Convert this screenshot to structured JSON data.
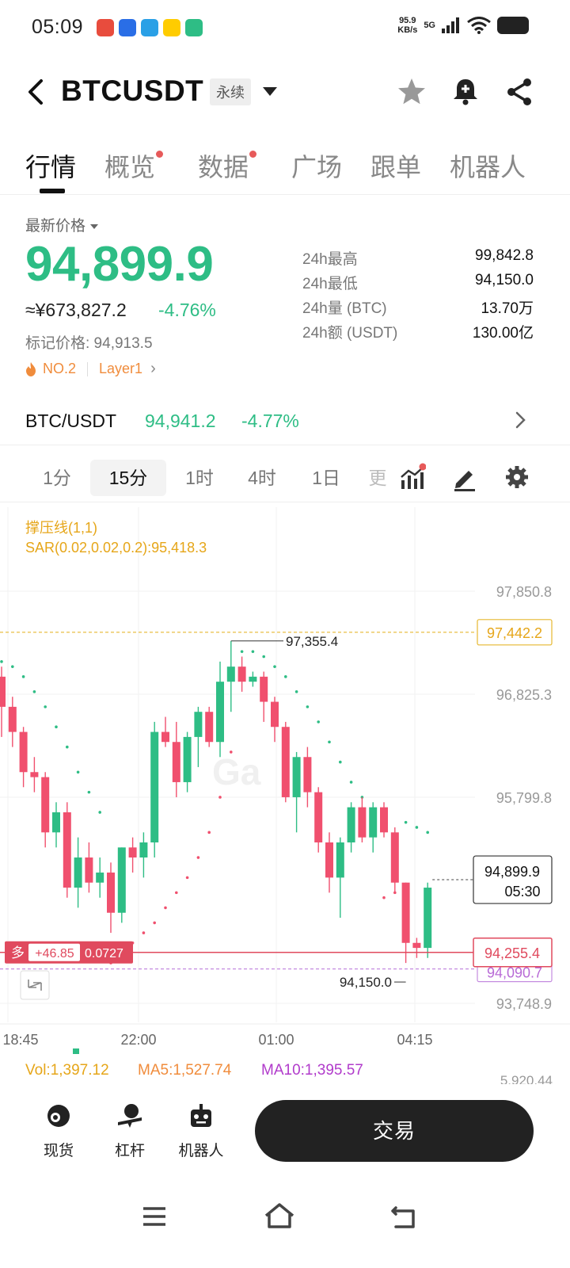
{
  "status_bar": {
    "time": "05:09",
    "net_speed": "95.9",
    "net_unit": "KB/s",
    "network": "5G",
    "app_icons": [
      "#e84c3d",
      "#2a6ee6",
      "#2aa0e6",
      "#ffcc00",
      "#2ebd85"
    ]
  },
  "header": {
    "symbol": "BTCUSDT",
    "contract_type": "永续"
  },
  "tabs": [
    {
      "label": "行情",
      "active": true,
      "dot": false
    },
    {
      "label": "概览",
      "active": false,
      "dot": true
    },
    {
      "label": "数据",
      "active": false,
      "dot": true
    },
    {
      "label": "广场",
      "active": false,
      "dot": false
    },
    {
      "label": "跟单",
      "active": false,
      "dot": false
    },
    {
      "label": "机器人",
      "active": false,
      "dot": false
    }
  ],
  "price": {
    "latest_label": "最新价格",
    "last": "94,899.9",
    "cny": "≈¥673,827.2",
    "change_pct": "-4.76%",
    "mark_price": "标记价格: 94,913.5",
    "rank": "NO.2",
    "sector": "Layer1"
  },
  "stats": [
    {
      "label": "24h最高",
      "value": "99,842.8"
    },
    {
      "label": "24h最低",
      "value": "94,150.0"
    },
    {
      "label": "24h量 (BTC)",
      "value": "13.70万"
    },
    {
      "label": "24h额 (USDT)",
      "value": "130.00亿"
    }
  ],
  "spot": {
    "pair": "BTC/USDT",
    "price": "94,941.2",
    "change": "-4.77%"
  },
  "intervals": {
    "items": [
      "1分",
      "15分",
      "1时",
      "4时",
      "1日",
      "更"
    ],
    "active": "15分"
  },
  "indicators": {
    "line1": "撑压线(1,1)",
    "line2": "SAR(0.02,0.02,0.2):95,418.3"
  },
  "colors": {
    "up": "#2ebd85",
    "down": "#f0506e",
    "accent": "#e6a619",
    "sar_up": "#2ebd85",
    "sar_down": "#f0506e"
  },
  "chart_data": {
    "type": "candlestick",
    "interval": "15分",
    "y_ticks": [
      "97,850.8",
      "96,825.3",
      "95,799.8",
      "93,748.9"
    ],
    "y_tick_values": [
      97850.8,
      96825.3,
      95799.8,
      93748.9
    ],
    "x_ticks": [
      "18:45",
      "22:00",
      "01:00",
      "04:15"
    ],
    "resistance_line": {
      "value": 97442.2,
      "label": "97,442.2"
    },
    "last_price_label": {
      "value": 94899.9,
      "price": "94,899.9",
      "countdown": "05:30"
    },
    "position_line": {
      "value": 94255.4,
      "label": "94,255.4",
      "side": "多",
      "pnl": "+46.85",
      "ratio": "0.0727"
    },
    "support_line": {
      "value": 94090.7,
      "label": "94,090.7"
    },
    "high_marker": {
      "value": 97355.4,
      "label": "97,355.4"
    },
    "low_marker": {
      "value": 94150.0,
      "label": "94,150.0"
    },
    "candles": [
      [
        97000,
        97100,
        96400,
        96700
      ],
      [
        96700,
        96800,
        96300,
        96450
      ],
      [
        96450,
        96500,
        95900,
        96050
      ],
      [
        96050,
        96200,
        95850,
        96000
      ],
      [
        96000,
        96050,
        95300,
        95450
      ],
      [
        95450,
        95750,
        95300,
        95650
      ],
      [
        95650,
        95750,
        94800,
        94900
      ],
      [
        94900,
        95400,
        94700,
        95200
      ],
      [
        95200,
        95350,
        94850,
        94950
      ],
      [
        94950,
        95200,
        94800,
        95050
      ],
      [
        95050,
        95150,
        94450,
        94650
      ],
      [
        94650,
        95300,
        94550,
        95300
      ],
      [
        95300,
        95400,
        95050,
        95200
      ],
      [
        95200,
        95450,
        95000,
        95350
      ],
      [
        95350,
        96550,
        95200,
        96450
      ],
      [
        96450,
        96600,
        96300,
        96350
      ],
      [
        96350,
        96550,
        95800,
        95950
      ],
      [
        95950,
        96450,
        95850,
        96400
      ],
      [
        96400,
        96700,
        96100,
        96650
      ],
      [
        96650,
        96700,
        96300,
        96350
      ],
      [
        96350,
        97150,
        96200,
        96950
      ],
      [
        96950,
        97355,
        96650,
        97100
      ],
      [
        97100,
        97200,
        96850,
        96950
      ],
      [
        96950,
        97050,
        96900,
        97000
      ],
      [
        97000,
        97050,
        96550,
        96750
      ],
      [
        96750,
        96800,
        96350,
        96500
      ],
      [
        96500,
        96550,
        95750,
        95800
      ],
      [
        95800,
        96250,
        95450,
        96200
      ],
      [
        96200,
        96300,
        95700,
        95850
      ],
      [
        95850,
        95900,
        95250,
        95350
      ],
      [
        95350,
        95450,
        94850,
        95000
      ],
      [
        95000,
        95400,
        94600,
        95350
      ],
      [
        95350,
        95750,
        95250,
        95700
      ],
      [
        95700,
        95800,
        95350,
        95400
      ],
      [
        95400,
        95750,
        95250,
        95700
      ],
      [
        95700,
        95750,
        95400,
        95450
      ],
      [
        95450,
        95500,
        94850,
        94950
      ],
      [
        94950,
        94950,
        94150,
        94350
      ],
      [
        94350,
        94400,
        94200,
        94300
      ],
      [
        94300,
        94950,
        94200,
        94900
      ]
    ],
    "sar_dots": [
      [
        0,
        97150,
        "up"
      ],
      [
        1,
        97100,
        "up"
      ],
      [
        2,
        97000,
        "up"
      ],
      [
        3,
        96850,
        "up"
      ],
      [
        4,
        96700,
        "up"
      ],
      [
        5,
        96500,
        "up"
      ],
      [
        6,
        96300,
        "up"
      ],
      [
        7,
        96050,
        "up"
      ],
      [
        8,
        95850,
        "up"
      ],
      [
        9,
        95650,
        "up"
      ],
      [
        10,
        94150,
        "down"
      ],
      [
        11,
        94250,
        "down"
      ],
      [
        12,
        94350,
        "down"
      ],
      [
        13,
        94450,
        "down"
      ],
      [
        14,
        94550,
        "down"
      ],
      [
        15,
        94700,
        "down"
      ],
      [
        16,
        94850,
        "down"
      ],
      [
        17,
        95000,
        "down"
      ],
      [
        18,
        95200,
        "down"
      ],
      [
        19,
        95450,
        "down"
      ],
      [
        20,
        95800,
        "down"
      ],
      [
        21,
        96250,
        "down"
      ],
      [
        22,
        97250,
        "up"
      ],
      [
        23,
        97250,
        "up"
      ],
      [
        24,
        97200,
        "up"
      ],
      [
        25,
        97100,
        "up"
      ],
      [
        26,
        97000,
        "up"
      ],
      [
        27,
        96850,
        "up"
      ],
      [
        28,
        96700,
        "up"
      ],
      [
        29,
        96550,
        "up"
      ],
      [
        30,
        96350,
        "up"
      ],
      [
        31,
        96150,
        "up"
      ],
      [
        32,
        95950,
        "up"
      ],
      [
        33,
        95800,
        "up"
      ],
      [
        34,
        95650,
        "up"
      ],
      [
        35,
        94800,
        "down"
      ],
      [
        36,
        94850,
        "down"
      ],
      [
        37,
        95550,
        "up"
      ],
      [
        38,
        95500,
        "up"
      ],
      [
        39,
        95450,
        "up"
      ]
    ]
  },
  "volume": {
    "vol": "Vol:1,397.12",
    "ma5": "MA5:1,527.74",
    "ma10": "MA10:1,395.57",
    "axis": "5,920.44"
  },
  "bottom_bar": {
    "items": [
      "现货",
      "杠杆",
      "机器人"
    ],
    "trade": "交易"
  }
}
